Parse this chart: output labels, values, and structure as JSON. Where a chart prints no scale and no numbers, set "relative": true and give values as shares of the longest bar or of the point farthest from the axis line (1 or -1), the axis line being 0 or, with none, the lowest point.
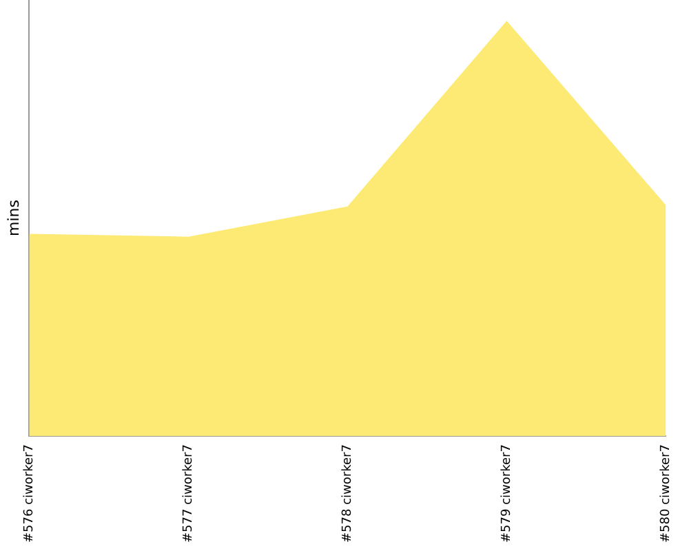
{
  "chart_data": {
    "type": "area",
    "ylabel": "mins",
    "relative": true,
    "grid": false,
    "legend": false,
    "categories": [
      "#576 ciworker7",
      "#577 ciworker7",
      "#578 ciworker7",
      "#579 ciworker7",
      "#580 ciworker7"
    ],
    "series": [
      {
        "color": "#fcea74",
        "values": [
          0.487,
          0.48,
          0.553,
          1,
          0.556
        ]
      }
    ]
  }
}
